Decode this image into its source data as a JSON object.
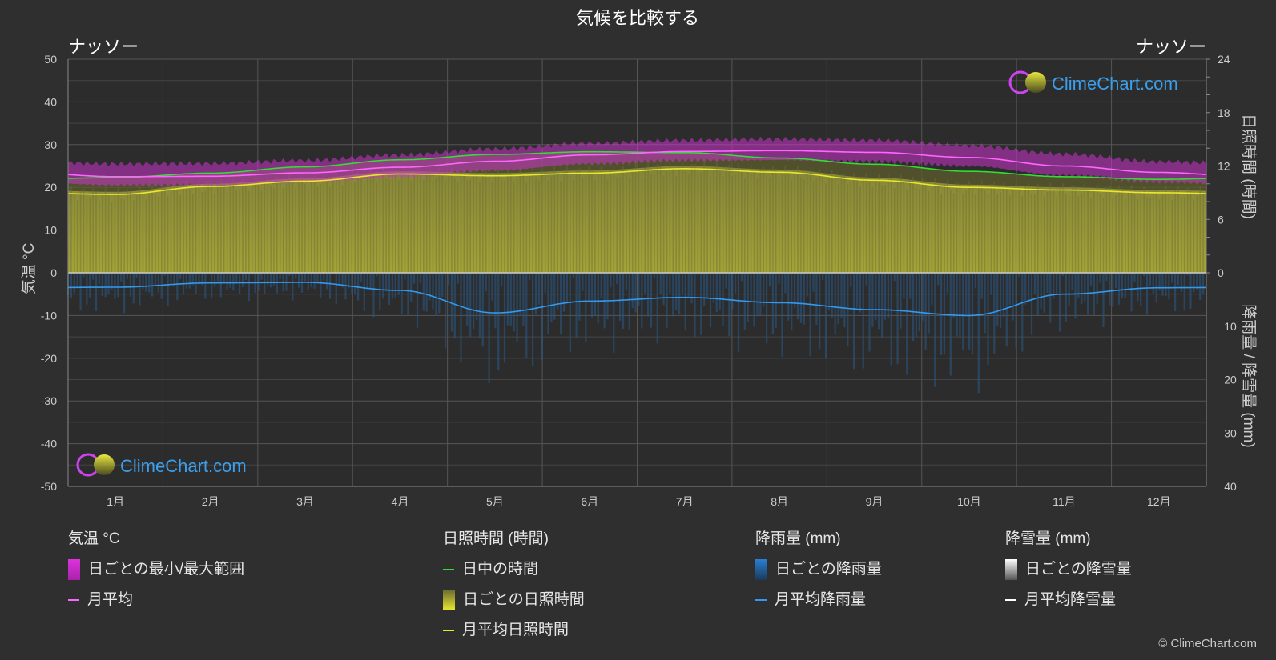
{
  "header": {
    "title": "気候を比較する",
    "left_location": "ナッソー",
    "right_location": "ナッソー"
  },
  "axes": {
    "left_label": "気温 °C",
    "right_top_label": "日照時間 (時間)",
    "right_bottom_label": "降雨量 / 降雪量 (mm)",
    "left_ticks": [
      "50",
      "40",
      "30",
      "20",
      "10",
      "0",
      "-10",
      "-20",
      "-30",
      "-40",
      "-50"
    ],
    "right_top_ticks": [
      "24",
      "18",
      "12",
      "6",
      "0"
    ],
    "right_bottom_ticks": [
      "10",
      "20",
      "30",
      "40"
    ]
  },
  "watermark": {
    "text": "ClimeChart.com"
  },
  "chart_data": {
    "type": "line",
    "categories": [
      "1月",
      "2月",
      "3月",
      "4月",
      "5月",
      "6月",
      "7月",
      "8月",
      "9月",
      "10月",
      "11月",
      "12月"
    ],
    "temp_axis": {
      "range": [
        -50,
        50
      ],
      "unit": "°C"
    },
    "sunshine_axis": {
      "range": [
        0,
        24
      ],
      "unit": "時間"
    },
    "precip_axis": {
      "range": [
        0,
        40
      ],
      "unit": "mm",
      "inverted": true
    },
    "series": [
      {
        "name": "日中の時間",
        "axis": "sunshine",
        "color": "#33dd33",
        "values": [
          10.7,
          11.2,
          11.9,
          12.7,
          13.3,
          13.6,
          13.5,
          12.9,
          12.2,
          11.4,
          10.8,
          10.5
        ]
      },
      {
        "name": "月平均日照時間",
        "axis": "sunshine",
        "color": "#e8e830",
        "values": [
          8.8,
          9.7,
          10.3,
          11.1,
          10.9,
          11.2,
          11.7,
          11.3,
          10.4,
          9.6,
          9.3,
          9.0
        ]
      },
      {
        "name": "月平均",
        "axis": "temp",
        "color": "#ff66ff",
        "values": [
          22.5,
          22.6,
          23.4,
          24.7,
          26.1,
          27.6,
          28.4,
          28.6,
          28.2,
          27.0,
          25.0,
          23.5
        ]
      },
      {
        "name": "月平均降雨量",
        "axis": "precip",
        "color": "#3399ee",
        "values": [
          2.7,
          1.9,
          1.8,
          3.3,
          7.5,
          5.3,
          4.6,
          5.6,
          6.9,
          8.0,
          4.0,
          2.8
        ]
      }
    ],
    "temp_range": {
      "min": [
        20.5,
        20.5,
        21.2,
        22.5,
        24.0,
        25.5,
        26.3,
        26.4,
        26.0,
        25.0,
        22.8,
        21.3
      ],
      "max": [
        25.5,
        25.6,
        26.3,
        27.6,
        29.0,
        30.3,
        31.0,
        31.3,
        31.0,
        29.8,
        27.8,
        26.0
      ]
    }
  },
  "legend": {
    "groups": [
      {
        "header": "気温 °C",
        "items": [
          {
            "label": "日ごとの最小/最大範囲",
            "swatch": "box",
            "color": "#dd33dd"
          },
          {
            "label": "月平均",
            "swatch": "line",
            "color": "#ff66ff"
          }
        ]
      },
      {
        "header": "日照時間 (時間)",
        "items": [
          {
            "label": "日中の時間",
            "swatch": "line",
            "color": "#33dd33"
          },
          {
            "label": "日ごとの日照時間",
            "swatch": "box",
            "color": "#d6d62a"
          },
          {
            "label": "月平均日照時間",
            "swatch": "line",
            "color": "#e8e830"
          }
        ]
      },
      {
        "header": "降雨量 (mm)",
        "items": [
          {
            "label": "日ごとの降雨量",
            "swatch": "box",
            "color": "#2a7fd4"
          },
          {
            "label": "月平均降雨量",
            "swatch": "line",
            "color": "#3399ee"
          }
        ]
      },
      {
        "header": "降雪量 (mm)",
        "items": [
          {
            "label": "日ごとの降雪量",
            "swatch": "box",
            "color": "#dddddd"
          },
          {
            "label": "月平均降雪量",
            "swatch": "line",
            "color": "#ffffff"
          }
        ]
      }
    ]
  },
  "footer": {
    "copyright": "© ClimeChart.com"
  }
}
